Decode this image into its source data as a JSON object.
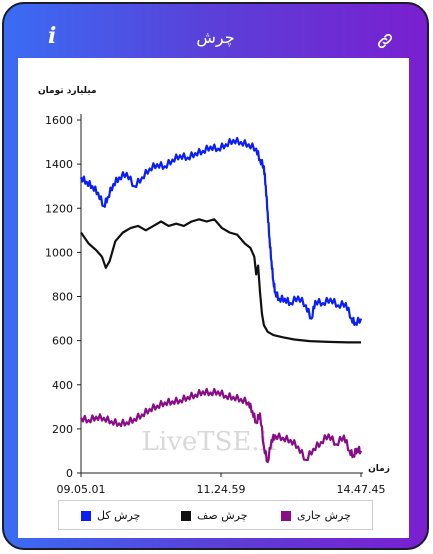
{
  "header": {
    "title": "چرش",
    "info_icon": "info-icon",
    "link_icon": "link-icon"
  },
  "chart_data": {
    "type": "line",
    "ylabel": "میلیارد تومان",
    "xlabel": "زمان",
    "ylim": [
      0,
      1600
    ],
    "yticks": [
      0,
      200,
      400,
      600,
      800,
      1000,
      1200,
      1400,
      1600
    ],
    "xtick_labels": [
      "09.05.01",
      "11.24.59",
      "14.47.45"
    ],
    "watermark": "LiveTSE.ir",
    "legend_position": "bottom",
    "grid": false,
    "series": [
      {
        "name": "چرش کل",
        "color": "#0a1ef5",
        "points": [
          [
            0,
            1340
          ],
          [
            3,
            1320
          ],
          [
            6,
            1300
          ],
          [
            9,
            1270
          ],
          [
            12,
            1210
          ],
          [
            14,
            1250
          ],
          [
            17,
            1310
          ],
          [
            20,
            1340
          ],
          [
            24,
            1360
          ],
          [
            28,
            1300
          ],
          [
            32,
            1340
          ],
          [
            36,
            1380
          ],
          [
            40,
            1400
          ],
          [
            44,
            1390
          ],
          [
            48,
            1420
          ],
          [
            52,
            1440
          ],
          [
            56,
            1430
          ],
          [
            60,
            1450
          ],
          [
            64,
            1460
          ],
          [
            68,
            1480
          ],
          [
            72,
            1470
          ],
          [
            76,
            1490
          ],
          [
            80,
            1510
          ],
          [
            84,
            1500
          ],
          [
            88,
            1490
          ],
          [
            92,
            1470
          ],
          [
            94,
            1420
          ],
          [
            96,
            1390
          ],
          [
            97,
            1300
          ],
          [
            98,
            1180
          ],
          [
            99,
            1060
          ],
          [
            100,
            960
          ],
          [
            101,
            870
          ],
          [
            102,
            820
          ],
          [
            104,
            790
          ],
          [
            107,
            790
          ],
          [
            110,
            770
          ],
          [
            114,
            800
          ],
          [
            118,
            760
          ],
          [
            121,
            700
          ],
          [
            123,
            780
          ],
          [
            127,
            770
          ],
          [
            131,
            790
          ],
          [
            135,
            760
          ],
          [
            139,
            770
          ],
          [
            142,
            700
          ],
          [
            144,
            680
          ],
          [
            147,
            700
          ]
        ]
      },
      {
        "name": "چرش صف",
        "color": "#111111",
        "points": [
          [
            0,
            1090
          ],
          [
            4,
            1040
          ],
          [
            8,
            1010
          ],
          [
            11,
            980
          ],
          [
            13,
            930
          ],
          [
            15,
            960
          ],
          [
            18,
            1050
          ],
          [
            22,
            1090
          ],
          [
            26,
            1110
          ],
          [
            30,
            1120
          ],
          [
            34,
            1100
          ],
          [
            38,
            1120
          ],
          [
            42,
            1140
          ],
          [
            46,
            1120
          ],
          [
            50,
            1130
          ],
          [
            54,
            1120
          ],
          [
            58,
            1140
          ],
          [
            62,
            1150
          ],
          [
            66,
            1140
          ],
          [
            70,
            1150
          ],
          [
            74,
            1110
          ],
          [
            78,
            1090
          ],
          [
            82,
            1080
          ],
          [
            86,
            1040
          ],
          [
            89,
            1020
          ],
          [
            91,
            980
          ],
          [
            92,
            900
          ],
          [
            93,
            940
          ],
          [
            94,
            820
          ],
          [
            95,
            720
          ],
          [
            96,
            670
          ],
          [
            98,
            640
          ],
          [
            101,
            625
          ],
          [
            106,
            615
          ],
          [
            112,
            605
          ],
          [
            120,
            598
          ],
          [
            130,
            594
          ],
          [
            140,
            592
          ],
          [
            147,
            592
          ]
        ]
      },
      {
        "name": "چرش جاری",
        "color": "#8a0b87",
        "points": [
          [
            0,
            250
          ],
          [
            4,
            240
          ],
          [
            8,
            255
          ],
          [
            12,
            250
          ],
          [
            16,
            235
          ],
          [
            20,
            225
          ],
          [
            24,
            230
          ],
          [
            28,
            245
          ],
          [
            32,
            265
          ],
          [
            36,
            290
          ],
          [
            40,
            305
          ],
          [
            44,
            320
          ],
          [
            48,
            325
          ],
          [
            52,
            330
          ],
          [
            56,
            345
          ],
          [
            60,
            355
          ],
          [
            64,
            370
          ],
          [
            68,
            365
          ],
          [
            72,
            370
          ],
          [
            76,
            350
          ],
          [
            80,
            345
          ],
          [
            84,
            335
          ],
          [
            88,
            320
          ],
          [
            90,
            280
          ],
          [
            92,
            230
          ],
          [
            94,
            270
          ],
          [
            96,
            120
          ],
          [
            98,
            50
          ],
          [
            100,
            150
          ],
          [
            102,
            170
          ],
          [
            106,
            160
          ],
          [
            110,
            150
          ],
          [
            114,
            120
          ],
          [
            118,
            60
          ],
          [
            122,
            110
          ],
          [
            126,
            140
          ],
          [
            130,
            175
          ],
          [
            134,
            130
          ],
          [
            138,
            170
          ],
          [
            141,
            100
          ],
          [
            143,
            80
          ],
          [
            145,
            110
          ],
          [
            147,
            100
          ]
        ]
      }
    ]
  },
  "colors": {
    "gradient_start": "#3a6cf4",
    "gradient_end": "#7a1fd0"
  }
}
